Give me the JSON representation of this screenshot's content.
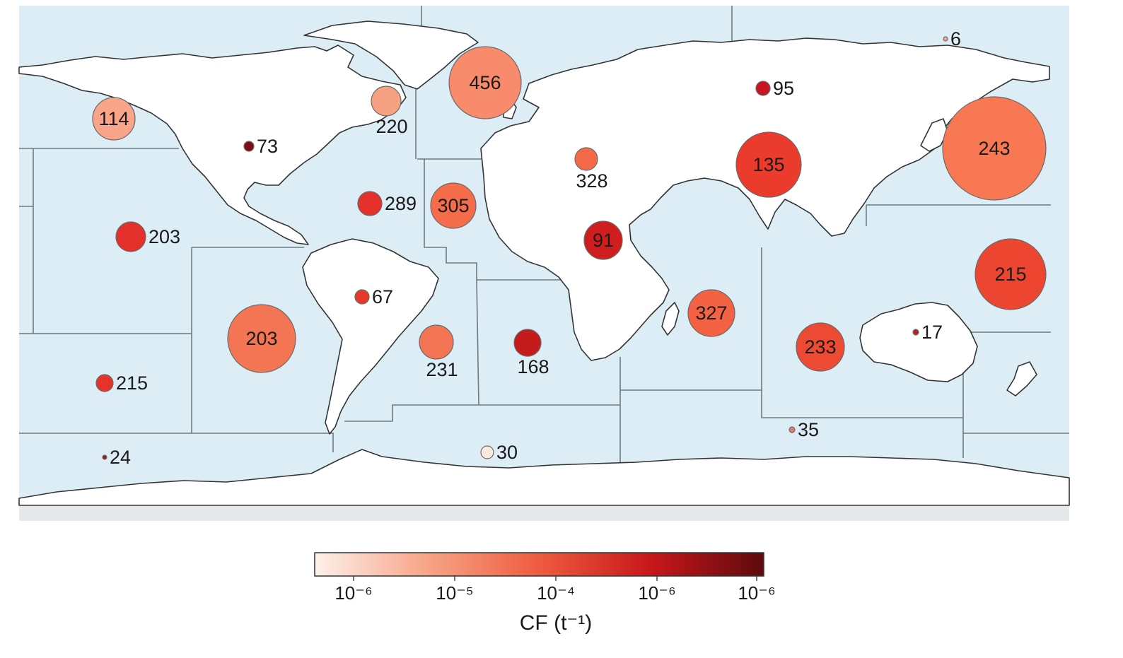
{
  "colorbar": {
    "title": "CF (t⁻¹)",
    "ticks": [
      "10⁻⁶",
      "10⁻⁵",
      "10⁻⁴",
      "10⁻⁶",
      "10⁻⁶"
    ],
    "colors": [
      "#fdf1ea",
      "#f8a487",
      "#ee5b3f",
      "#c7171b",
      "#5e0a0d"
    ]
  },
  "colors": {
    "ocean": "#dcedf5",
    "land": "#ffffff",
    "coast": "#333333",
    "region_border": "#6d7a80"
  },
  "sites": [
    {
      "label": "6",
      "value": 6,
      "color": "#f0a48c",
      "label_position": "right"
    },
    {
      "label": "95",
      "value": 95,
      "color": "#c8161e",
      "label_position": "right"
    },
    {
      "label": "456",
      "value": 456,
      "color": "#f88b6b",
      "label_position": "inside"
    },
    {
      "label": "220",
      "value": 220,
      "color": "#f7a183",
      "label_position": "below"
    },
    {
      "label": "114",
      "value": 114,
      "color": "#f9a589",
      "label_position": "inside"
    },
    {
      "label": "73",
      "value": 73,
      "color": "#7e0e10",
      "label_position": "right"
    },
    {
      "label": "243",
      "value": 243,
      "color": "#f77853",
      "label_position": "inside"
    },
    {
      "label": "135",
      "value": 135,
      "color": "#ea3b2c",
      "label_position": "inside"
    },
    {
      "label": "328",
      "value": 328,
      "color": "#f46a48",
      "label_position": "below"
    },
    {
      "label": "305",
      "value": 305,
      "color": "#f46c4a",
      "label_position": "inside"
    },
    {
      "label": "289",
      "value": 289,
      "color": "#e3302a",
      "label_position": "right"
    },
    {
      "label": "203",
      "value": 203,
      "color": "#e3302a",
      "label_position": "right"
    },
    {
      "label": "91",
      "value": 91,
      "color": "#d01e1e",
      "label_position": "inside"
    },
    {
      "label": "215",
      "value": 215,
      "color": "#ec4630",
      "label_position": "inside"
    },
    {
      "label": "67",
      "value": 67,
      "color": "#e5392a",
      "label_position": "right"
    },
    {
      "label": "203",
      "value": 203,
      "color": "#f47553",
      "label_position": "inside"
    },
    {
      "label": "327",
      "value": 327,
      "color": "#f26243",
      "label_position": "inside"
    },
    {
      "label": "231",
      "value": 231,
      "color": "#f47553",
      "label_position": "below"
    },
    {
      "label": "168",
      "value": 168,
      "color": "#c41b1c",
      "label_position": "below"
    },
    {
      "label": "233",
      "value": 233,
      "color": "#ec4a33",
      "label_position": "inside"
    },
    {
      "label": "17",
      "value": 17,
      "color": "#b5242a",
      "label_position": "right"
    },
    {
      "label": "215",
      "value": 215,
      "color": "#e5332a",
      "label_position": "right"
    },
    {
      "label": "35",
      "value": 35,
      "color": "#e37e73",
      "label_position": "right"
    },
    {
      "label": "24",
      "value": 24,
      "color": "#9c1a1e",
      "label_position": "right"
    },
    {
      "label": "30",
      "value": 30,
      "color": "#fbe9e0",
      "label_position": "right"
    }
  ]
}
